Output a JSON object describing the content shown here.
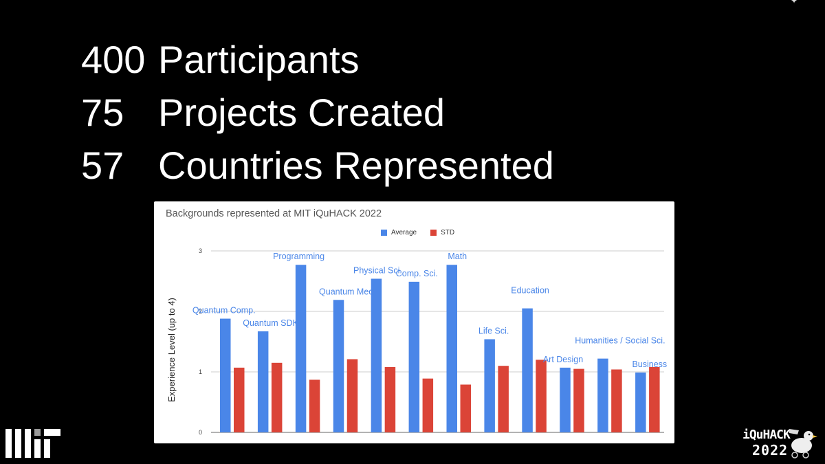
{
  "stats": [
    {
      "number": "400",
      "label": "Participants"
    },
    {
      "number": "75",
      "label": "Projects Created"
    },
    {
      "number": "57",
      "label": "Countries Represented"
    }
  ],
  "chart_data": {
    "type": "bar",
    "title": "Backgrounds represented at MIT iQuHACK 2022",
    "ylabel": "Experience Level (up to 4)",
    "xlabel": "",
    "ylim": [
      0,
      3
    ],
    "yticks": [
      "0",
      "1",
      "2",
      "3"
    ],
    "grid": true,
    "legend_position": "top-center",
    "categories": [
      "Quantum Comp.",
      "Quantum SDKs",
      "Programming",
      "Quantum Mech.",
      "Physical Sci.",
      "Comp. Sci.",
      "Math",
      "Life Sci.",
      "Education",
      "Art Design",
      "Humanities / Social Sci.",
      "Business"
    ],
    "series": [
      {
        "name": "Average",
        "color": "#4a86e8",
        "values": [
          1.88,
          1.67,
          2.77,
          2.19,
          2.54,
          2.49,
          2.77,
          1.54,
          2.05,
          1.07,
          1.22,
          0.99
        ]
      },
      {
        "name": "STD",
        "color": "#db4437",
        "values": [
          1.07,
          1.15,
          0.87,
          1.21,
          1.08,
          0.89,
          0.79,
          1.1,
          1.2,
          1.05,
          1.04,
          1.08
        ]
      }
    ]
  },
  "branding": {
    "mit_logo": "mit-logo",
    "event_name": "iQuHACK",
    "event_year": "2022",
    "mascot_icon": "duck-icon",
    "corner_icon": "star-icon"
  }
}
